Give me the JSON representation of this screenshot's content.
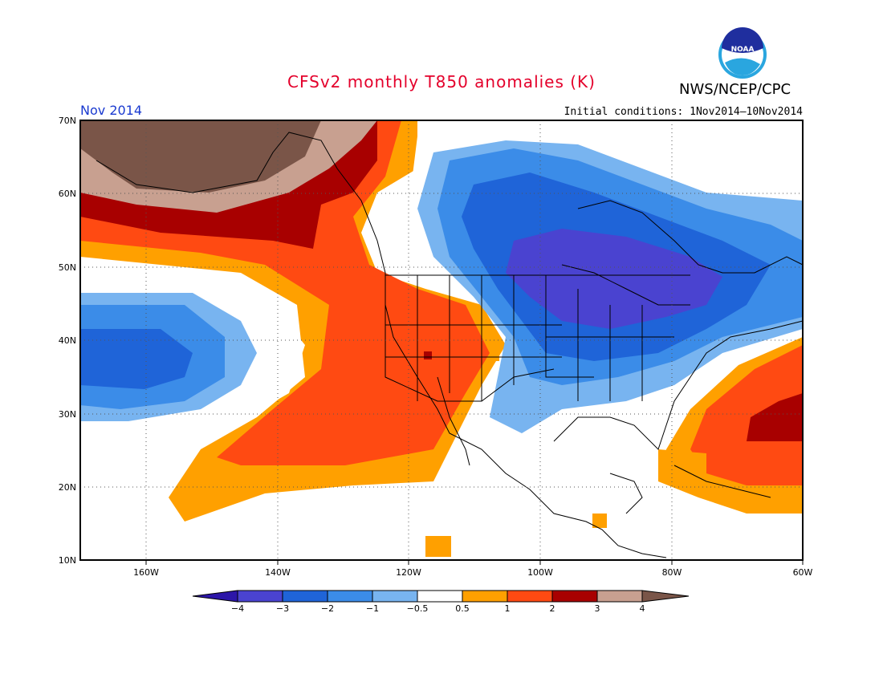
{
  "header": {
    "title": "CFSv2 monthly T850 anomalies (K)",
    "month": "Nov 2014",
    "initial_conditions": "Initial conditions: 1Nov2014–10Nov2014",
    "org": "NWS/NCEP/CPC",
    "logo_text": "NOAA"
  },
  "map": {
    "lat_labels": [
      "70N",
      "60N",
      "50N",
      "40N",
      "30N",
      "20N",
      "10N"
    ],
    "lon_labels": [
      "160W",
      "140W",
      "120W",
      "100W",
      "80W",
      "60W"
    ]
  },
  "colorbar": {
    "labels": [
      "−4",
      "−3",
      "−2",
      "−1",
      "−0.5",
      "0.5",
      "1",
      "2",
      "3",
      "4"
    ],
    "colors": [
      "#2c16a8",
      "#4a43d0",
      "#1f64d8",
      "#3b8ce8",
      "#78b4f0",
      "#ffffff",
      "#ffa000",
      "#ff4a12",
      "#a80000",
      "#c8a090",
      "#7a5548"
    ]
  }
}
